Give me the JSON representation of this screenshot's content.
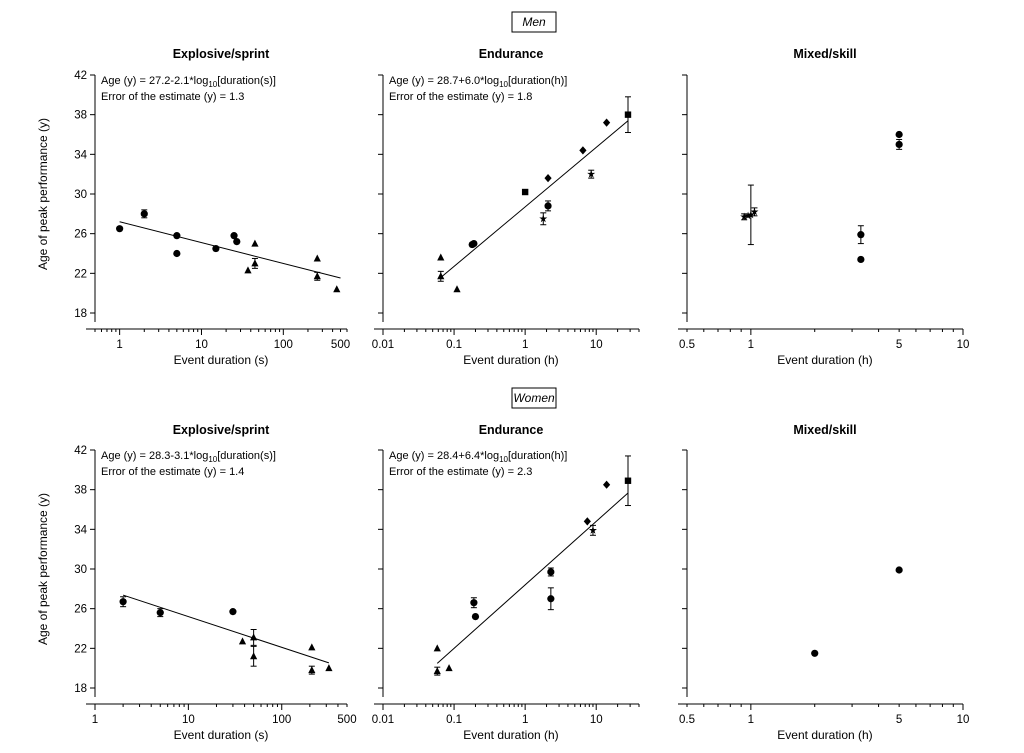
{
  "groups": [
    {
      "label": "Men"
    },
    {
      "label": "Women"
    }
  ],
  "chart_data": [
    {
      "type": "scatter",
      "group": "Men",
      "title": "Explosive/sprint",
      "xlabel": "Event duration (s)",
      "ylabel": "Age of peak performance (y)",
      "xscale": "log",
      "xlim": [
        0.5,
        600
      ],
      "ylim": [
        18,
        42
      ],
      "xticks": [
        1,
        10,
        100,
        500
      ],
      "xtick_labels": [
        "1",
        "10",
        "100",
        "500"
      ],
      "yticks": [
        18,
        22,
        26,
        30,
        34,
        38,
        42
      ],
      "annotation": {
        "equation": "Age (y) = 27.2-2.1*log10[duration(s)]",
        "error": "Error of the estimate (y) = 1.3"
      },
      "fit": {
        "intercept": 27.2,
        "slope": -2.1,
        "x_range": [
          1,
          500
        ]
      },
      "points": [
        {
          "x": 1,
          "y": 26.5,
          "marker": "circle"
        },
        {
          "x": 2,
          "y": 28.0,
          "marker": "circle",
          "err": 0.4
        },
        {
          "x": 5,
          "y": 25.8,
          "marker": "circle"
        },
        {
          "x": 5,
          "y": 24.0,
          "marker": "circle"
        },
        {
          "x": 15,
          "y": 24.5,
          "marker": "circle"
        },
        {
          "x": 25,
          "y": 25.8,
          "marker": "circle"
        },
        {
          "x": 27,
          "y": 25.2,
          "marker": "circle"
        },
        {
          "x": 37,
          "y": 22.3,
          "marker": "triangle"
        },
        {
          "x": 45,
          "y": 25.0,
          "marker": "triangle"
        },
        {
          "x": 45,
          "y": 23.0,
          "marker": "triangle",
          "err": 0.5
        },
        {
          "x": 260,
          "y": 23.5,
          "marker": "triangle"
        },
        {
          "x": 260,
          "y": 21.7,
          "marker": "triangle",
          "err": 0.4
        },
        {
          "x": 450,
          "y": 20.4,
          "marker": "triangle"
        }
      ]
    },
    {
      "type": "scatter",
      "group": "Men",
      "title": "Endurance",
      "xlabel": "Event duration (h)",
      "ylabel": "",
      "xscale": "log",
      "xlim": [
        0.01,
        40
      ],
      "ylim": [
        18,
        42
      ],
      "xticks": [
        0.01,
        0.1,
        1,
        10
      ],
      "xtick_labels": [
        "0.01",
        "0.1",
        "1",
        "10"
      ],
      "yticks": [
        18,
        22,
        26,
        30,
        34,
        38,
        42
      ],
      "annotation": {
        "equation": "Age (y) = 28.7+6.0*log10[duration(h)]",
        "error": "Error of the estimate (y) = 1.8"
      },
      "fit": {
        "intercept": 28.7,
        "slope": 6.0,
        "x_range": [
          0.065,
          28
        ]
      },
      "points": [
        {
          "x": 0.065,
          "y": 23.6,
          "marker": "triangle"
        },
        {
          "x": 0.065,
          "y": 21.7,
          "marker": "triangle",
          "err": 0.5
        },
        {
          "x": 0.11,
          "y": 20.4,
          "marker": "triangle"
        },
        {
          "x": 0.18,
          "y": 24.9,
          "marker": "circle"
        },
        {
          "x": 0.19,
          "y": 25.0,
          "marker": "circle"
        },
        {
          "x": 1.0,
          "y": 30.2,
          "marker": "square"
        },
        {
          "x": 1.8,
          "y": 27.5,
          "marker": "star",
          "err": 0.6
        },
        {
          "x": 2.1,
          "y": 28.8,
          "marker": "circle",
          "err": 0.5
        },
        {
          "x": 2.1,
          "y": 31.6,
          "marker": "diamond"
        },
        {
          "x": 6.5,
          "y": 34.4,
          "marker": "diamond"
        },
        {
          "x": 8.5,
          "y": 32.0,
          "marker": "star",
          "err": 0.4
        },
        {
          "x": 14,
          "y": 37.2,
          "marker": "diamond"
        },
        {
          "x": 28,
          "y": 38.0,
          "marker": "square",
          "err": 1.8
        }
      ]
    },
    {
      "type": "scatter",
      "group": "Men",
      "title": "Mixed/skill",
      "xlabel": "Event duration (h)",
      "ylabel": "",
      "xscale": "log",
      "xlim": [
        0.5,
        10
      ],
      "ylim": [
        18,
        42
      ],
      "xticks": [
        0.5,
        1,
        5,
        10
      ],
      "xtick_labels": [
        "0.5",
        "1",
        "5",
        "10"
      ],
      "yticks": [
        18,
        22,
        26,
        30,
        34,
        38,
        42
      ],
      "points": [
        {
          "x": 0.93,
          "y": 27.7,
          "marker": "star",
          "err": 0.3
        },
        {
          "x": 0.97,
          "y": 27.8,
          "marker": "star"
        },
        {
          "x": 1.0,
          "y": 27.9,
          "marker": "star",
          "err": 3.0
        },
        {
          "x": 1.04,
          "y": 28.2,
          "marker": "star",
          "err": 0.4
        },
        {
          "x": 3.3,
          "y": 23.4,
          "marker": "circle"
        },
        {
          "x": 3.3,
          "y": 25.9,
          "marker": "circle",
          "err": 0.9
        },
        {
          "x": 5.0,
          "y": 36.0,
          "marker": "circle"
        },
        {
          "x": 5.0,
          "y": 35.0,
          "marker": "circle",
          "err": 0.5
        }
      ]
    },
    {
      "type": "scatter",
      "group": "Women",
      "title": "Explosive/sprint",
      "xlabel": "Event duration (s)",
      "ylabel": "Age of peak performance (y)",
      "xscale": "log",
      "xlim": [
        1,
        500
      ],
      "ylim": [
        18,
        42
      ],
      "xticks": [
        1,
        10,
        100,
        500
      ],
      "xtick_labels": [
        "1",
        "10",
        "100",
        "500"
      ],
      "yticks": [
        18,
        22,
        26,
        30,
        34,
        38,
        42
      ],
      "annotation": {
        "equation": "Age (y) = 28.3-3.1*log10[duration(s)]",
        "error": "Error of the estimate (y) = 1.4"
      },
      "fit": {
        "intercept": 28.3,
        "slope": -3.1,
        "x_range": [
          2,
          320
        ]
      },
      "points": [
        {
          "x": 2,
          "y": 26.7,
          "marker": "circle",
          "err": 0.5
        },
        {
          "x": 5,
          "y": 25.6,
          "marker": "circle",
          "err": 0.4
        },
        {
          "x": 30,
          "y": 25.7,
          "marker": "circle"
        },
        {
          "x": 38,
          "y": 22.7,
          "marker": "triangle"
        },
        {
          "x": 50,
          "y": 23.1,
          "marker": "triangle",
          "err": 0.8
        },
        {
          "x": 50,
          "y": 21.2,
          "marker": "triangle",
          "err": 1.0
        },
        {
          "x": 210,
          "y": 22.1,
          "marker": "triangle"
        },
        {
          "x": 210,
          "y": 19.8,
          "marker": "triangle",
          "err": 0.4
        },
        {
          "x": 320,
          "y": 20.0,
          "marker": "triangle"
        }
      ]
    },
    {
      "type": "scatter",
      "group": "Women",
      "title": "Endurance",
      "xlabel": "Event duration (h)",
      "ylabel": "",
      "xscale": "log",
      "xlim": [
        0.01,
        40
      ],
      "ylim": [
        18,
        42
      ],
      "xticks": [
        0.01,
        0.1,
        1,
        10
      ],
      "xtick_labels": [
        "0.01",
        "0.1",
        "1",
        "10"
      ],
      "yticks": [
        18,
        22,
        26,
        30,
        34,
        38,
        42
      ],
      "annotation": {
        "equation": "Age (y) = 28.4+6.4*log10[duration(h)]",
        "error": "Error of the estimate (y) = 2.3"
      },
      "fit": {
        "intercept": 28.4,
        "slope": 6.4,
        "x_range": [
          0.058,
          28
        ]
      },
      "points": [
        {
          "x": 0.058,
          "y": 22.0,
          "marker": "triangle"
        },
        {
          "x": 0.058,
          "y": 19.7,
          "marker": "triangle",
          "err": 0.4
        },
        {
          "x": 0.085,
          "y": 20.0,
          "marker": "triangle"
        },
        {
          "x": 0.19,
          "y": 26.6,
          "marker": "circle",
          "err": 0.5
        },
        {
          "x": 0.2,
          "y": 25.2,
          "marker": "circle"
        },
        {
          "x": 2.3,
          "y": 29.7,
          "marker": "circle",
          "err": 0.4
        },
        {
          "x": 2.3,
          "y": 27.0,
          "marker": "circle",
          "err": 1.1
        },
        {
          "x": 7.5,
          "y": 34.8,
          "marker": "diamond"
        },
        {
          "x": 9.0,
          "y": 33.9,
          "marker": "star",
          "err": 0.5
        },
        {
          "x": 14,
          "y": 38.5,
          "marker": "diamond"
        },
        {
          "x": 28,
          "y": 38.9,
          "marker": "square",
          "err": 2.5
        }
      ]
    },
    {
      "type": "scatter",
      "group": "Women",
      "title": "Mixed/skill",
      "xlabel": "Event duration (h)",
      "ylabel": "",
      "xscale": "log",
      "xlim": [
        0.5,
        10
      ],
      "ylim": [
        18,
        42
      ],
      "xticks": [
        0.5,
        1,
        5,
        10
      ],
      "xtick_labels": [
        "0.5",
        "1",
        "5",
        "10"
      ],
      "yticks": [
        18,
        22,
        26,
        30,
        34,
        38,
        42
      ],
      "points": [
        {
          "x": 2.0,
          "y": 21.5,
          "marker": "circle"
        },
        {
          "x": 5.0,
          "y": 29.9,
          "marker": "circle"
        }
      ]
    }
  ]
}
